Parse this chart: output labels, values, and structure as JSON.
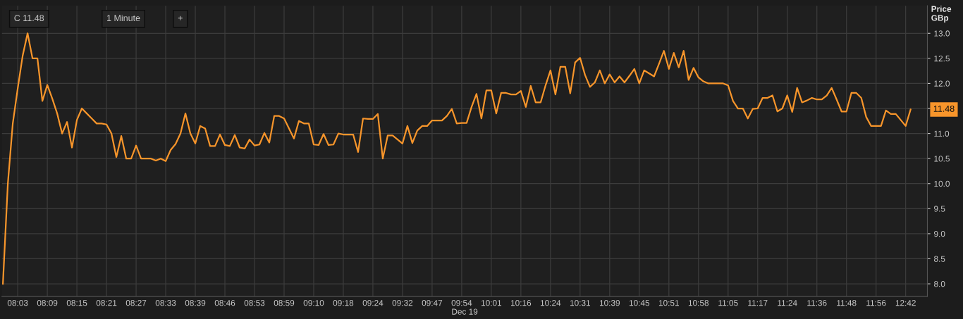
{
  "chart_data": {
    "type": "line",
    "xlabel": "Dec 19",
    "ylabel": "Price\nGBp",
    "categories": [
      null,
      null,
      null,
      "08:03",
      null,
      null,
      null,
      null,
      null,
      "08:09",
      null,
      null,
      null,
      null,
      null,
      "08:15",
      null,
      null,
      null,
      null,
      null,
      "08:21",
      null,
      null,
      null,
      null,
      null,
      "08:27",
      null,
      null,
      null,
      null,
      null,
      "08:33",
      null,
      null,
      null,
      null,
      null,
      "08:39",
      null,
      null,
      null,
      null,
      null,
      "08:46",
      null,
      null,
      null,
      null,
      null,
      "08:53",
      null,
      null,
      null,
      null,
      null,
      "08:59",
      null,
      null,
      null,
      null,
      null,
      "09:10",
      null,
      null,
      null,
      null,
      null,
      "09:18",
      null,
      null,
      null,
      null,
      null,
      "09:24",
      null,
      null,
      null,
      null,
      null,
      "09:32",
      null,
      null,
      null,
      null,
      null,
      "09:47",
      null,
      null,
      null,
      null,
      null,
      "09:54",
      null,
      null,
      null,
      null,
      null,
      "10:01",
      null,
      null,
      null,
      null,
      null,
      "10:16",
      null,
      null,
      null,
      null,
      null,
      "10:24",
      null,
      null,
      null,
      null,
      null,
      "10:31",
      null,
      null,
      null,
      null,
      null,
      "10:39",
      null,
      null,
      null,
      null,
      null,
      "10:45",
      null,
      null,
      null,
      null,
      null,
      "10:51",
      null,
      null,
      null,
      null,
      null,
      "10:58",
      null,
      null,
      null,
      null,
      null,
      "11:05",
      null,
      null,
      null,
      null,
      null,
      "11:17",
      null,
      null,
      null,
      null,
      null,
      "11:24",
      null,
      null,
      null,
      null,
      null,
      "11:36",
      null,
      null,
      null,
      null,
      null,
      "11:48",
      null,
      null,
      null,
      null,
      null,
      "11:56",
      null,
      null,
      null,
      null,
      null,
      "12:42",
      null
    ],
    "series": [
      {
        "color": "#f7952b",
        "values": [
          8.0,
          10.0,
          11.2,
          11.9,
          12.55,
          13.0,
          12.5,
          12.5,
          11.65,
          11.97,
          11.7,
          11.4,
          11.0,
          11.23,
          10.72,
          11.27,
          11.5,
          11.4,
          11.3,
          11.2,
          11.2,
          11.18,
          11.0,
          10.53,
          10.95,
          10.5,
          10.5,
          10.76,
          10.5,
          10.5,
          10.5,
          10.46,
          10.5,
          10.45,
          10.67,
          10.79,
          11.0,
          11.4,
          11.0,
          10.8,
          11.15,
          11.1,
          10.75,
          10.75,
          10.98,
          10.77,
          10.75,
          10.97,
          10.72,
          10.7,
          10.88,
          10.76,
          10.78,
          11.01,
          10.82,
          11.35,
          11.35,
          11.3,
          11.1,
          10.9,
          11.25,
          11.2,
          11.2,
          10.78,
          10.77,
          10.99,
          10.77,
          10.78,
          11.0,
          10.98,
          10.98,
          10.98,
          10.63,
          11.3,
          11.29,
          11.29,
          11.39,
          10.5,
          10.96,
          10.96,
          10.88,
          10.8,
          11.15,
          10.81,
          11.06,
          11.15,
          11.15,
          11.26,
          11.26,
          11.26,
          11.35,
          11.49,
          11.2,
          11.21,
          11.21,
          11.53,
          11.79,
          11.3,
          11.86,
          11.86,
          11.4,
          11.81,
          11.81,
          11.78,
          11.78,
          11.85,
          11.53,
          11.95,
          11.62,
          11.62,
          11.96,
          12.26,
          11.78,
          12.33,
          12.33,
          11.8,
          12.42,
          12.51,
          12.17,
          11.93,
          12.02,
          12.26,
          12.0,
          12.18,
          12.02,
          12.14,
          12.02,
          12.15,
          12.29,
          12.0,
          12.26,
          12.2,
          12.14,
          12.39,
          12.65,
          12.29,
          12.61,
          12.32,
          12.65,
          12.07,
          12.31,
          12.12,
          12.04,
          12.0,
          12.0,
          12.0,
          12.0,
          11.96,
          11.65,
          11.5,
          11.5,
          11.3,
          11.49,
          11.5,
          11.71,
          11.71,
          11.76,
          11.44,
          11.5,
          11.76,
          11.43,
          11.91,
          11.62,
          11.66,
          11.71,
          11.68,
          11.68,
          11.76,
          11.91,
          11.68,
          11.44,
          11.44,
          11.81,
          11.81,
          11.71,
          11.33,
          11.15,
          11.15,
          11.15,
          11.46,
          11.39,
          11.39,
          11.27,
          11.15,
          11.48
        ]
      }
    ],
    "ylim": [
      7.75,
      13.55
    ],
    "yticks": [
      {
        "value": 8,
        "label": "8.0"
      },
      {
        "value": 8.5,
        "label": "8.5"
      },
      {
        "value": 9,
        "label": "9.0"
      },
      {
        "value": 9.5,
        "label": "9.5"
      },
      {
        "value": 10,
        "label": "10.0"
      },
      {
        "value": 10.5,
        "label": "10.5"
      },
      {
        "value": 11,
        "label": "11.0"
      },
      {
        "value": 11.5,
        "label": null
      },
      {
        "value": 12,
        "label": "12.0"
      },
      {
        "value": 12.5,
        "label": "12.5"
      },
      {
        "value": 13,
        "label": "13.0"
      }
    ],
    "grid": true,
    "annotations": [
      "C 11.48",
      "1 Minute",
      "+",
      "11.48"
    ]
  }
}
